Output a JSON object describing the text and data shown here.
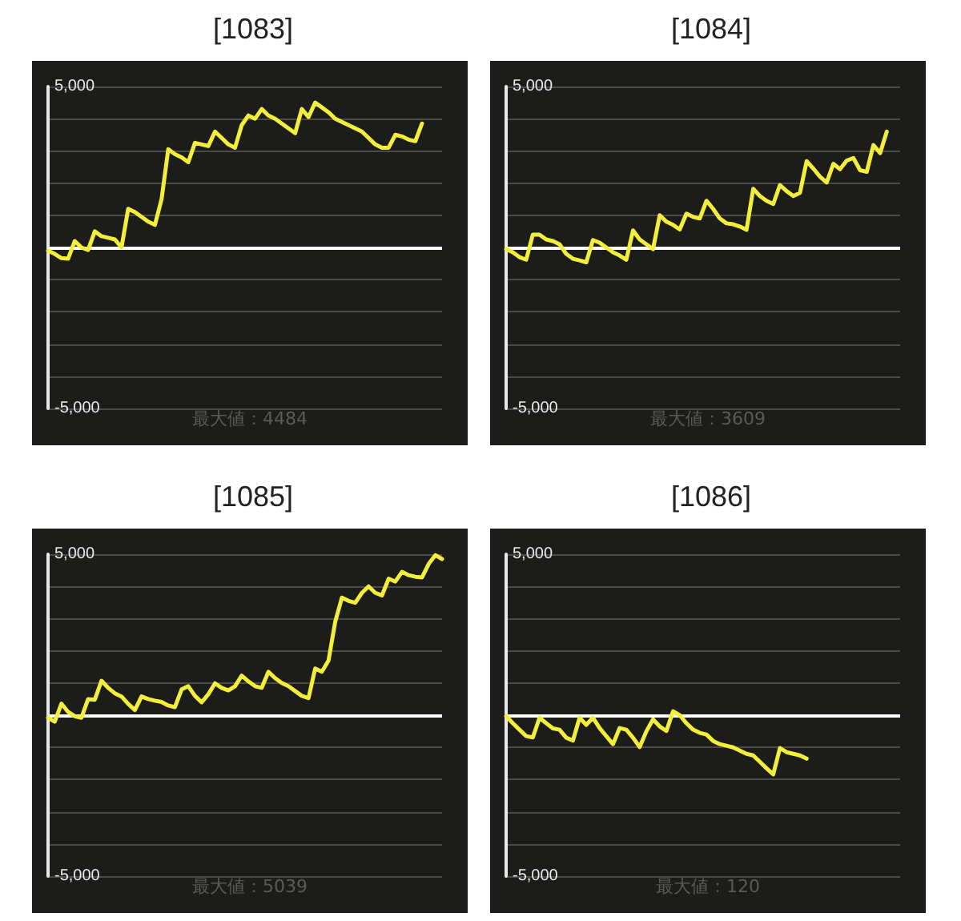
{
  "chart_data": [
    {
      "type": "line",
      "title": "[1083]",
      "annotations": [
        "最大値：4484"
      ],
      "categories": [
        null,
        null,
        null,
        null,
        null,
        null,
        null,
        null,
        null,
        null,
        null,
        null,
        null,
        null,
        null,
        null,
        null,
        null,
        null,
        null,
        null,
        null,
        null,
        null,
        null,
        null,
        null,
        null,
        null,
        null,
        null,
        null,
        null,
        null,
        null,
        null,
        null,
        null,
        null,
        null,
        null,
        null,
        null,
        null,
        null,
        null,
        null,
        null,
        null,
        null,
        null,
        null,
        null,
        null,
        null,
        null,
        null,
        null,
        null,
        null
      ],
      "series": [
        {
          "color": "#f2ee3a",
          "values": [
            -100,
            -200,
            -330,
            -350,
            200,
            0,
            -80,
            500,
            350,
            300,
            250,
            0,
            1200,
            1100,
            950,
            800,
            700,
            1500,
            3050,
            2900,
            2800,
            2650,
            3250,
            3200,
            3150,
            3600,
            3400,
            3200,
            3100,
            3800,
            4100,
            4000,
            4300,
            4100,
            4000,
            3850,
            3700,
            3550,
            4300,
            4050,
            4500,
            4350,
            4200,
            4000,
            3900,
            3800,
            3700,
            3600,
            3400,
            3200,
            3100,
            3100,
            3500,
            3450,
            3350,
            3300,
            3850,
            null,
            null,
            null
          ]
        }
      ],
      "ylim": [
        -5000,
        5000
      ],
      "yticks": [
        {
          "value": -5000,
          "label": "-5,000"
        },
        {
          "value": -4000,
          "label": null
        },
        {
          "value": -3000,
          "label": null
        },
        {
          "value": -2000,
          "label": null
        },
        {
          "value": -1000,
          "label": null
        },
        {
          "value": 0,
          "label": null
        },
        {
          "value": 1000,
          "label": null
        },
        {
          "value": 2000,
          "label": null
        },
        {
          "value": 3000,
          "label": null
        },
        {
          "value": 4000,
          "label": null
        },
        {
          "value": 5000,
          "label": "5,000"
        }
      ],
      "ref_lines": [
        {
          "axis": "y",
          "value": 0,
          "color": "#ffffff"
        }
      ],
      "grid": "y",
      "tick_labels": "y",
      "line_style": "solid"
    },
    {
      "type": "line",
      "title": "[1084]",
      "annotations": [
        "最大値：3609"
      ],
      "categories": [
        null,
        null,
        null,
        null,
        null,
        null,
        null,
        null,
        null,
        null,
        null,
        null,
        null,
        null,
        null,
        null,
        null,
        null,
        null,
        null,
        null,
        null,
        null,
        null,
        null,
        null,
        null,
        null,
        null,
        null,
        null,
        null,
        null,
        null,
        null,
        null,
        null,
        null,
        null,
        null,
        null,
        null,
        null,
        null,
        null,
        null,
        null,
        null,
        null,
        null,
        null,
        null,
        null,
        null,
        null,
        null,
        null,
        null,
        null,
        null
      ],
      "series": [
        {
          "color": "#f2ee3a",
          "values": [
            -50,
            -150,
            -300,
            -380,
            400,
            400,
            250,
            200,
            100,
            -200,
            -350,
            -400,
            -460,
            230,
            150,
            0,
            -150,
            -250,
            -380,
            530,
            250,
            100,
            -50,
            1000,
            800,
            700,
            560,
            1050,
            950,
            900,
            1450,
            1200,
            900,
            750,
            720,
            650,
            550,
            1820,
            1600,
            1450,
            1350,
            1940,
            1750,
            1600,
            1700,
            2680,
            2450,
            2200,
            2020,
            2600,
            2430,
            2700,
            2780,
            2400,
            2350,
            3180,
            2930,
            3600,
            null,
            null
          ]
        }
      ],
      "ylim": [
        -5000,
        5000
      ],
      "yticks": [
        {
          "value": -5000,
          "label": "-5,000"
        },
        {
          "value": -4000,
          "label": null
        },
        {
          "value": -3000,
          "label": null
        },
        {
          "value": -2000,
          "label": null
        },
        {
          "value": -1000,
          "label": null
        },
        {
          "value": 0,
          "label": null
        },
        {
          "value": 1000,
          "label": null
        },
        {
          "value": 2000,
          "label": null
        },
        {
          "value": 3000,
          "label": null
        },
        {
          "value": 4000,
          "label": null
        },
        {
          "value": 5000,
          "label": "5,000"
        }
      ],
      "ref_lines": [
        {
          "axis": "y",
          "value": 0,
          "color": "#ffffff"
        }
      ],
      "grid": "y",
      "tick_labels": "y",
      "line_style": "solid"
    },
    {
      "type": "line",
      "title": "[1085]",
      "annotations": [
        "最大値：5039"
      ],
      "categories": [
        null,
        null,
        null,
        null,
        null,
        null,
        null,
        null,
        null,
        null,
        null,
        null,
        null,
        null,
        null,
        null,
        null,
        null,
        null,
        null,
        null,
        null,
        null,
        null,
        null,
        null,
        null,
        null,
        null,
        null,
        null,
        null,
        null,
        null,
        null,
        null,
        null,
        null,
        null,
        null,
        null,
        null,
        null,
        null,
        null,
        null,
        null,
        null,
        null,
        null,
        null,
        null,
        null,
        null,
        null,
        null,
        null,
        null,
        null,
        null
      ],
      "series": [
        {
          "color": "#f2ee3a",
          "values": [
            -80,
            -200,
            360,
            100,
            -30,
            -80,
            500,
            480,
            1070,
            850,
            680,
            580,
            350,
            160,
            580,
            500,
            450,
            410,
            300,
            250,
            800,
            900,
            600,
            400,
            650,
            990,
            850,
            770,
            900,
            1230,
            1050,
            900,
            850,
            1350,
            1150,
            1000,
            900,
            750,
            600,
            530,
            1450,
            1350,
            1700,
            2900,
            3650,
            3550,
            3490,
            3800,
            4000,
            3800,
            3720,
            4240,
            4150,
            4450,
            4350,
            4300,
            4280,
            4700,
            4970,
            4850
          ]
        }
      ],
      "ylim": [
        -5000,
        5000
      ],
      "yticks": [
        {
          "value": -5000,
          "label": "-5,000"
        },
        {
          "value": -4000,
          "label": null
        },
        {
          "value": -3000,
          "label": null
        },
        {
          "value": -2000,
          "label": null
        },
        {
          "value": -1000,
          "label": null
        },
        {
          "value": 0,
          "label": null
        },
        {
          "value": 1000,
          "label": null
        },
        {
          "value": 2000,
          "label": null
        },
        {
          "value": 3000,
          "label": null
        },
        {
          "value": 4000,
          "label": null
        },
        {
          "value": 5000,
          "label": "5,000"
        }
      ],
      "ref_lines": [
        {
          "axis": "y",
          "value": 0,
          "color": "#ffffff"
        }
      ],
      "grid": "y",
      "tick_labels": "y",
      "line_style": "solid"
    },
    {
      "type": "line",
      "title": "[1086]",
      "annotations": [
        "最大値：120"
      ],
      "categories": [
        null,
        null,
        null,
        null,
        null,
        null,
        null,
        null,
        null,
        null,
        null,
        null,
        null,
        null,
        null,
        null,
        null,
        null,
        null,
        null,
        null,
        null,
        null,
        null,
        null,
        null,
        null,
        null,
        null,
        null,
        null,
        null,
        null,
        null,
        null,
        null,
        null,
        null,
        null,
        null,
        null,
        null,
        null,
        null,
        null,
        null,
        null,
        null,
        null,
        null,
        null,
        null,
        null,
        null,
        null,
        null,
        null,
        null,
        null,
        null
      ],
      "series": [
        {
          "color": "#f2ee3a",
          "values": [
            -30,
            -250,
            -450,
            -650,
            -690,
            -80,
            -250,
            -410,
            -450,
            -700,
            -790,
            -80,
            -300,
            -80,
            -400,
            -650,
            -900,
            -400,
            -450,
            -700,
            -990,
            -500,
            -130,
            -350,
            -490,
            120,
            0,
            -250,
            -450,
            -550,
            -600,
            -800,
            -900,
            -950,
            -1000,
            -1100,
            -1200,
            -1250,
            -1450,
            -1650,
            -1840,
            -1020,
            -1150,
            -1200,
            -1250,
            -1350,
            null,
            null,
            null,
            null,
            null,
            null,
            null,
            null,
            null,
            null,
            null,
            null,
            null,
            null
          ]
        }
      ],
      "ylim": [
        -5000,
        5000
      ],
      "yticks": [
        {
          "value": -5000,
          "label": "-5,000"
        },
        {
          "value": -4000,
          "label": null
        },
        {
          "value": -3000,
          "label": null
        },
        {
          "value": -2000,
          "label": null
        },
        {
          "value": -1000,
          "label": null
        },
        {
          "value": 0,
          "label": null
        },
        {
          "value": 1000,
          "label": null
        },
        {
          "value": 2000,
          "label": null
        },
        {
          "value": 3000,
          "label": null
        },
        {
          "value": 4000,
          "label": null
        },
        {
          "value": 5000,
          "label": "5,000"
        }
      ],
      "ref_lines": [
        {
          "axis": "y",
          "value": 0,
          "color": "#ffffff"
        }
      ],
      "grid": "y",
      "tick_labels": "y",
      "line_style": "solid"
    }
  ]
}
